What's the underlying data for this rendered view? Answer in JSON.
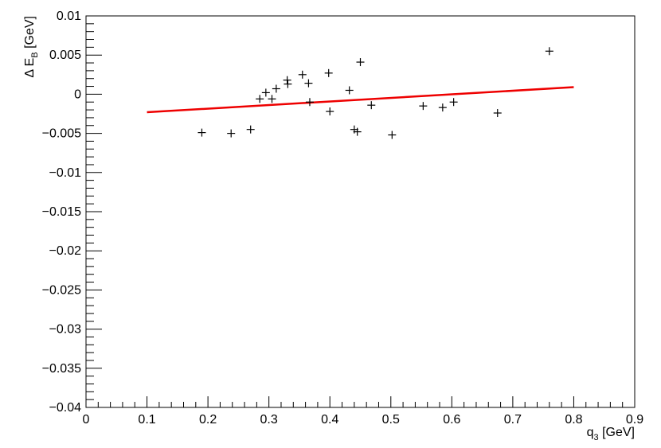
{
  "chart_data": {
    "type": "scatter",
    "title": "",
    "xlabel": {
      "main": "q",
      "sub": "3",
      "unit": " [GeV]"
    },
    "ylabel": {
      "main": "Δ E",
      "sub": "B",
      "unit": " [GeV]"
    },
    "xlim": [
      0,
      0.9
    ],
    "ylim": [
      -0.04,
      0.01
    ],
    "x_ticks": [
      "0",
      "0.1",
      "0.2",
      "0.3",
      "0.4",
      "0.5",
      "0.6",
      "0.7",
      "0.8",
      "0.9"
    ],
    "y_ticks": [
      "0.01",
      "0.005",
      "0",
      "−0.005",
      "−0.01",
      "−0.015",
      "−0.02",
      "−0.025",
      "−0.03",
      "−0.035",
      "−0.04"
    ],
    "grid": false,
    "marker_color": "#000000",
    "fit_color": "#ee0000",
    "points": [
      {
        "x": 0.19,
        "y": -0.0049
      },
      {
        "x": 0.238,
        "y": -0.005
      },
      {
        "x": 0.27,
        "y": -0.0045
      },
      {
        "x": 0.285,
        "y": -0.0006
      },
      {
        "x": 0.295,
        "y": 0.0002
      },
      {
        "x": 0.305,
        "y": -0.0006
      },
      {
        "x": 0.312,
        "y": 0.0007
      },
      {
        "x": 0.33,
        "y": 0.0018
      },
      {
        "x": 0.331,
        "y": 0.0013
      },
      {
        "x": 0.355,
        "y": 0.0025
      },
      {
        "x": 0.365,
        "y": 0.0014
      },
      {
        "x": 0.367,
        "y": -0.001
      },
      {
        "x": 0.398,
        "y": 0.0027
      },
      {
        "x": 0.4,
        "y": -0.0022
      },
      {
        "x": 0.432,
        "y": 0.0005
      },
      {
        "x": 0.44,
        "y": -0.0045
      },
      {
        "x": 0.445,
        "y": -0.0048
      },
      {
        "x": 0.45,
        "y": 0.0041
      },
      {
        "x": 0.468,
        "y": -0.0014
      },
      {
        "x": 0.502,
        "y": -0.0052
      },
      {
        "x": 0.553,
        "y": -0.0015
      },
      {
        "x": 0.585,
        "y": -0.0017
      },
      {
        "x": 0.603,
        "y": -0.001
      },
      {
        "x": 0.675,
        "y": -0.0024
      },
      {
        "x": 0.76,
        "y": 0.0055
      }
    ],
    "fit": {
      "x": [
        0.1,
        0.8
      ],
      "y": [
        -0.0023,
        0.0009
      ]
    }
  }
}
